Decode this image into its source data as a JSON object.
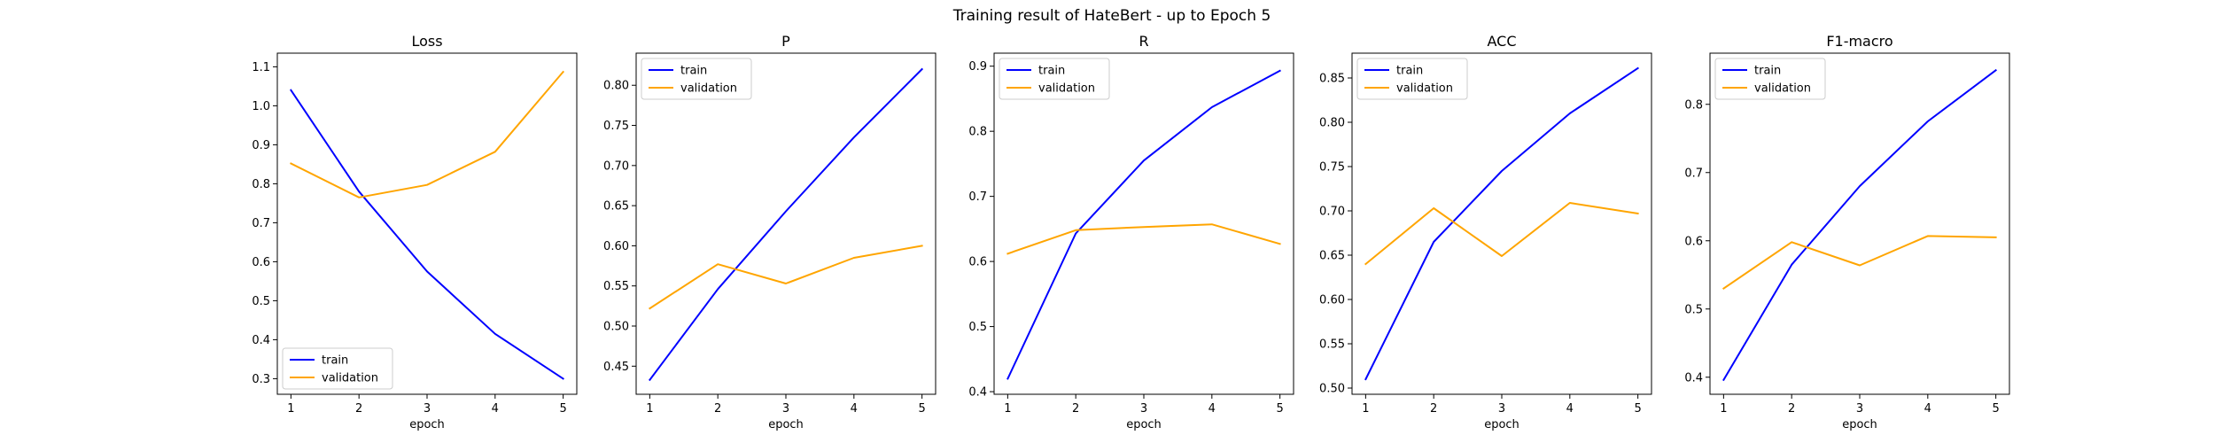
{
  "figure_title": "Training result of HateBert - up to Epoch 5",
  "chart_data": [
    {
      "type": "line",
      "title": "Loss",
      "xlabel": "epoch",
      "ylabel": "",
      "x": [
        1,
        2,
        3,
        4,
        5
      ],
      "xticks": [
        "1",
        "2",
        "3",
        "4",
        "5"
      ],
      "ylim": [
        0.26,
        1.135
      ],
      "yticks": [
        "0.3",
        "0.4",
        "0.5",
        "0.6",
        "0.7",
        "0.8",
        "0.9",
        "1.0",
        "1.1"
      ],
      "legend_position": "lower-left",
      "series": [
        {
          "name": "train",
          "color": "#0000ff",
          "values": [
            1.04,
            0.78,
            0.575,
            0.415,
            0.3
          ]
        },
        {
          "name": "validation",
          "color": "#ffa500",
          "values": [
            0.852,
            0.765,
            0.797,
            0.882,
            1.087
          ]
        }
      ]
    },
    {
      "type": "line",
      "title": "P",
      "xlabel": "epoch",
      "ylabel": "",
      "x": [
        1,
        2,
        3,
        4,
        5
      ],
      "xticks": [
        "1",
        "2",
        "3",
        "4",
        "5"
      ],
      "ylim": [
        0.415,
        0.84
      ],
      "yticks": [
        "0.45",
        "0.50",
        "0.55",
        "0.60",
        "0.65",
        "0.70",
        "0.75",
        "0.80"
      ],
      "legend_position": "upper-left",
      "series": [
        {
          "name": "train",
          "color": "#0000ff",
          "values": [
            0.433,
            0.546,
            0.643,
            0.735,
            0.82
          ]
        },
        {
          "name": "validation",
          "color": "#ffa500",
          "values": [
            0.522,
            0.577,
            0.553,
            0.585,
            0.6
          ]
        }
      ]
    },
    {
      "type": "line",
      "title": "R",
      "xlabel": "epoch",
      "ylabel": "",
      "x": [
        1,
        2,
        3,
        4,
        5
      ],
      "xticks": [
        "1",
        "2",
        "3",
        "4",
        "5"
      ],
      "ylim": [
        0.396,
        0.92
      ],
      "yticks": [
        "0.4",
        "0.5",
        "0.6",
        "0.7",
        "0.8",
        "0.9"
      ],
      "legend_position": "upper-left",
      "series": [
        {
          "name": "train",
          "color": "#0000ff",
          "values": [
            0.42,
            0.643,
            0.755,
            0.837,
            0.893
          ]
        },
        {
          "name": "validation",
          "color": "#ffa500",
          "values": [
            0.612,
            0.648,
            0.653,
            0.657,
            0.627
          ]
        }
      ]
    },
    {
      "type": "line",
      "title": "ACC",
      "xlabel": "epoch",
      "ylabel": "",
      "x": [
        1,
        2,
        3,
        4,
        5
      ],
      "xticks": [
        "1",
        "2",
        "3",
        "4",
        "5"
      ],
      "ylim": [
        0.493,
        0.878
      ],
      "yticks": [
        "0.50",
        "0.55",
        "0.60",
        "0.65",
        "0.70",
        "0.75",
        "0.80",
        "0.85"
      ],
      "legend_position": "upper-left",
      "series": [
        {
          "name": "train",
          "color": "#0000ff",
          "values": [
            0.51,
            0.665,
            0.745,
            0.81,
            0.861
          ]
        },
        {
          "name": "validation",
          "color": "#ffa500",
          "values": [
            0.64,
            0.703,
            0.649,
            0.709,
            0.697
          ]
        }
      ]
    },
    {
      "type": "line",
      "title": "F1-macro",
      "xlabel": "epoch",
      "ylabel": "",
      "x": [
        1,
        2,
        3,
        4,
        5
      ],
      "xticks": [
        "1",
        "2",
        "3",
        "4",
        "5"
      ],
      "ylim": [
        0.375,
        0.875
      ],
      "yticks": [
        "0.4",
        "0.5",
        "0.6",
        "0.7",
        "0.8"
      ],
      "legend_position": "upper-left",
      "series": [
        {
          "name": "train",
          "color": "#0000ff",
          "values": [
            0.396,
            0.565,
            0.68,
            0.775,
            0.85
          ]
        },
        {
          "name": "validation",
          "color": "#ffa500",
          "values": [
            0.53,
            0.598,
            0.564,
            0.607,
            0.605
          ]
        }
      ]
    }
  ]
}
